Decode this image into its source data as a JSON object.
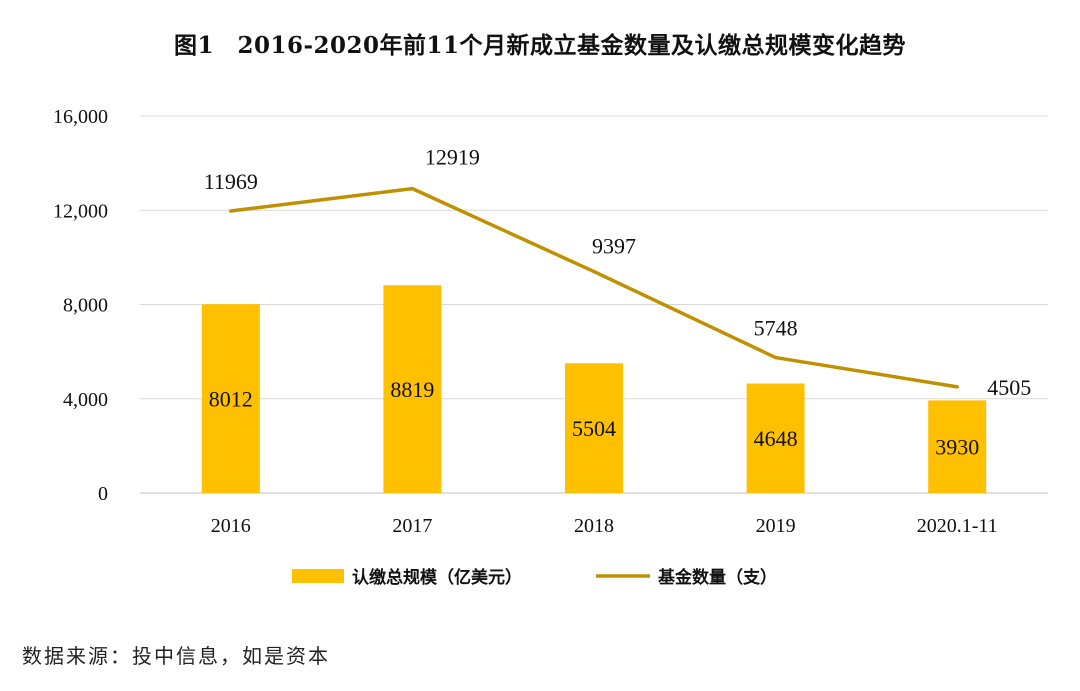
{
  "chart_data": {
    "type": "bar",
    "title": "图1　2016-2020年前11个月新成立基金数量及认缴总规模变化趋势",
    "categories": [
      "2016",
      "2017",
      "2018",
      "2019",
      "2020.1-11"
    ],
    "series": [
      {
        "name": "认缴总规模（亿美元）",
        "type": "bar",
        "color": "#FFC000",
        "values": [
          8012,
          8819,
          5504,
          4648,
          3930
        ]
      },
      {
        "name": "基金数量（支）",
        "type": "line",
        "color": "#BF9000",
        "values": [
          11969,
          12919,
          9397,
          5748,
          4505
        ]
      }
    ],
    "ylim": [
      0,
      16000
    ],
    "yticks": [
      0,
      4000,
      8000,
      12000,
      16000
    ],
    "ytick_labels": [
      "0",
      "4,000",
      "8,000",
      "12,000",
      "16,000"
    ],
    "xlabel": "",
    "ylabel": "",
    "grid": true,
    "legend_position": "bottom"
  },
  "source_note": "数据来源：投中信息，如是资本"
}
